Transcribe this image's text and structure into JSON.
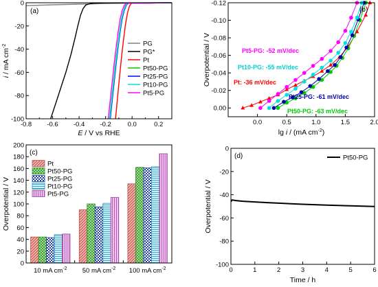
{
  "chart_data": [
    {
      "panel": "(a)",
      "type": "line",
      "xlabel_italic": "E",
      "xlabel_rest": " / V vs RHE",
      "ylabel_italic": "i",
      "ylabel_rest": " / mA cm",
      "ylabel_sup": "-2",
      "xlim": [
        -0.8,
        0.3
      ],
      "ylim": [
        -100,
        0
      ],
      "xticks": [
        -0.8,
        -0.7,
        -0.6,
        -0.5,
        -0.4,
        -0.3,
        -0.2,
        -0.1,
        0.0,
        0.1,
        0.2,
        0.3
      ],
      "xtick_labels": [
        "-0.8",
        "",
        "-0.6",
        "",
        "-0.4",
        "",
        "-0.2",
        "",
        "0.0",
        "",
        "0.2",
        ""
      ],
      "yticks": [
        -100,
        -80,
        -60,
        -40,
        -20,
        0
      ],
      "ytick_labels": [
        "-100",
        "-80",
        "-60",
        "-40",
        "-20",
        "0"
      ],
      "legend_position": "center-right",
      "series": [
        {
          "name": "PG",
          "color": "#808080",
          "x": [
            -0.8,
            -0.6,
            -0.4,
            -0.2,
            0.0,
            0.2,
            0.3
          ],
          "y": [
            -2.5,
            -1.8,
            -1.2,
            -0.7,
            -0.3,
            -0.1,
            0
          ]
        },
        {
          "name": "PG*",
          "color": "#000000",
          "x": [
            -0.615,
            -0.58,
            -0.54,
            -0.5,
            -0.46,
            -0.43,
            -0.41,
            -0.39,
            -0.37,
            -0.35,
            -0.32,
            -0.28,
            -0.2,
            0.3
          ],
          "y": [
            -100,
            -88,
            -74,
            -60,
            -44,
            -30,
            -20,
            -11,
            -5,
            -2,
            -0.8,
            -0.3,
            -0.1,
            0
          ]
        },
        {
          "name": "Pt",
          "color": "#ff0000",
          "x": [
            -0.125,
            -0.11,
            -0.095,
            -0.08,
            -0.065,
            -0.05,
            -0.035,
            -0.02,
            -0.005,
            0.3
          ],
          "y": [
            -100,
            -82,
            -64,
            -47,
            -32,
            -19,
            -9,
            -3,
            -0.4,
            0
          ]
        },
        {
          "name": "Pt50-PG",
          "color": "#00cc00",
          "x": [
            -0.17,
            -0.155,
            -0.14,
            -0.125,
            -0.11,
            -0.095,
            -0.08,
            -0.065,
            -0.05,
            -0.035,
            0.3
          ],
          "y": [
            -100,
            -84,
            -68,
            -52,
            -38,
            -25,
            -14,
            -7,
            -2.5,
            -0.5,
            0
          ]
        },
        {
          "name": "Pt25-PG",
          "color": "#0000ff",
          "x": [
            -0.165,
            -0.15,
            -0.135,
            -0.12,
            -0.105,
            -0.09,
            -0.075,
            -0.06,
            -0.045,
            -0.03,
            0.3
          ],
          "y": [
            -100,
            -84,
            -68,
            -52,
            -38,
            -25,
            -14,
            -7,
            -2.5,
            -0.5,
            0
          ]
        },
        {
          "name": "Pt10-PG",
          "color": "#00e0e0",
          "x": [
            -0.168,
            -0.153,
            -0.138,
            -0.123,
            -0.108,
            -0.093,
            -0.078,
            -0.063,
            -0.048,
            -0.033,
            0.3
          ],
          "y": [
            -100,
            -84,
            -68,
            -52,
            -38,
            -25,
            -14,
            -7,
            -2.5,
            -0.5,
            0
          ]
        },
        {
          "name": "Pt5-PG",
          "color": "#ff00ff",
          "x": [
            -0.18,
            -0.165,
            -0.15,
            -0.135,
            -0.12,
            -0.105,
            -0.09,
            -0.075,
            -0.06,
            -0.045,
            0.3
          ],
          "y": [
            -100,
            -84,
            -68,
            -52,
            -38,
            -25,
            -14,
            -7,
            -2.5,
            -0.5,
            0
          ]
        }
      ]
    },
    {
      "panel": "(b)",
      "type": "scatter",
      "xlabel_prefix": "lg ",
      "xlabel_italic": "i",
      "xlabel_rest": " / (mA cm",
      "xlabel_sup": "-2",
      "xlabel_close": ")",
      "ylabel": "Overpotential / V",
      "xlim": [
        -0.5,
        2.0
      ],
      "ylim": [
        0.01,
        -0.12
      ],
      "xticks": [
        -0.5,
        0.0,
        0.5,
        1.0,
        1.5,
        2.0
      ],
      "xtick_labels": [
        "",
        "0.0",
        "0.5",
        "1.0",
        "1.5",
        "2.0"
      ],
      "yticks": [
        0.0,
        -0.02,
        -0.04,
        -0.06,
        -0.08,
        -0.1,
        -0.12
      ],
      "ytick_labels": [
        "0.00",
        "-0.02",
        "-0.04",
        "-0.06",
        "-0.08",
        "-0.10",
        "-0.12"
      ],
      "series": [
        {
          "name": "Pt",
          "color": "#ff0000",
          "marker": "triangle",
          "x": [
            -0.25,
            -0.1,
            0.05,
            0.2,
            0.35,
            0.5,
            0.65,
            0.8,
            0.95,
            1.1,
            1.25,
            1.4,
            1.55,
            1.7,
            1.85,
            1.92
          ],
          "y": [
            0.0,
            -0.003,
            -0.007,
            -0.011,
            -0.015,
            -0.021,
            -0.026,
            -0.031,
            -0.036,
            -0.042,
            -0.049,
            -0.058,
            -0.07,
            -0.087,
            -0.106,
            -0.12
          ]
        },
        {
          "name": "Pt50-PG",
          "color": "#00cc00",
          "marker": "circle",
          "x": [
            0.35,
            0.5,
            0.65,
            0.8,
            0.95,
            1.1,
            1.25,
            1.35,
            1.45,
            1.55,
            1.65,
            1.75,
            1.85
          ],
          "y": [
            0.0,
            -0.006,
            -0.011,
            -0.017,
            -0.024,
            -0.032,
            -0.041,
            -0.048,
            -0.057,
            -0.068,
            -0.082,
            -0.1,
            -0.12
          ]
        },
        {
          "name": "Pt25-PG",
          "color": "#0000aa",
          "marker": "circle",
          "x": [
            0.28,
            0.45,
            0.6,
            0.75,
            0.9,
            1.05,
            1.2,
            1.32,
            1.42,
            1.52,
            1.62,
            1.72,
            1.82
          ],
          "y": [
            0.0,
            -0.007,
            -0.012,
            -0.018,
            -0.025,
            -0.033,
            -0.042,
            -0.049,
            -0.058,
            -0.069,
            -0.083,
            -0.101,
            -0.12
          ]
        },
        {
          "name": "Pt10-PG",
          "color": "#00e0e0",
          "marker": "circle",
          "x": [
            0.2,
            0.35,
            0.5,
            0.65,
            0.8,
            0.95,
            1.1,
            1.25,
            1.38,
            1.5,
            1.6,
            1.7,
            1.78
          ],
          "y": [
            0.0,
            -0.008,
            -0.015,
            -0.022,
            -0.03,
            -0.038,
            -0.046,
            -0.054,
            -0.063,
            -0.074,
            -0.087,
            -0.103,
            -0.12
          ]
        },
        {
          "name": "Pt5-PG",
          "color": "#ff00ff",
          "marker": "circle",
          "x": [
            0.05,
            0.2,
            0.35,
            0.5,
            0.65,
            0.8,
            0.95,
            1.1,
            1.25,
            1.38,
            1.5,
            1.6,
            1.7
          ],
          "y": [
            0.0,
            -0.008,
            -0.016,
            -0.024,
            -0.032,
            -0.04,
            -0.048,
            -0.056,
            -0.065,
            -0.075,
            -0.088,
            -0.103,
            -0.12
          ]
        }
      ],
      "annotations": [
        {
          "text": "Pt5-PG: -52 mV/dec",
          "color": "#ff00ff"
        },
        {
          "text": "Pt10-PG: -55 mV/dec",
          "color": "#00d0d0"
        },
        {
          "text": "Pt: -36 mV/dec",
          "color": "#ff0000"
        },
        {
          "text": "Pt25-PG: -61 mV/dec",
          "color": "#0000aa"
        },
        {
          "text": "Pt50-PG: -63 mV/dec",
          "color": "#00cc00"
        }
      ]
    },
    {
      "panel": "(c)",
      "type": "bar",
      "ylabel": "Overpotential / V",
      "ylim": [
        0,
        200
      ],
      "yticks": [
        0,
        20,
        40,
        60,
        80,
        100,
        120,
        140,
        160,
        180,
        200
      ],
      "ytick_labels": [
        "0",
        "20",
        "40",
        "60",
        "80",
        "100",
        "120",
        "140",
        "160",
        "180",
        "200"
      ],
      "categories": [
        {
          "value": "10 mA cm",
          "sup": "-2"
        },
        {
          "value": "50 mA cm",
          "sup": "-2"
        },
        {
          "value": "100 mA cm",
          "sup": "-2"
        }
      ],
      "legend_position": "top-left",
      "series": [
        {
          "name": "Pt",
          "color": "#c0504d",
          "fill": "#f4b6ae",
          "pattern": "diag",
          "values": [
            44,
            90,
            134
          ]
        },
        {
          "name": "Pt50-PG",
          "color": "#2e8b2e",
          "fill": "#b9f0a0",
          "pattern": "cross",
          "values": [
            44,
            100,
            162
          ]
        },
        {
          "name": "Pt25-PG",
          "color": "#1f3fa8",
          "fill": "#6c8df5",
          "pattern": "check",
          "values": [
            43,
            95,
            161
          ]
        },
        {
          "name": "Pt10-PG",
          "color": "#2a8fb0",
          "fill": "#c9f1fb",
          "pattern": "horiz",
          "values": [
            48,
            101,
            163
          ]
        },
        {
          "name": "Pt5-PG",
          "color": "#a040a0",
          "fill": "#f1c3f1",
          "pattern": "vert",
          "values": [
            49,
            111,
            185
          ]
        }
      ]
    },
    {
      "panel": "(d)",
      "type": "line",
      "xlabel": "Time / h",
      "ylabel": "Overpotential / V",
      "xlim": [
        0,
        6
      ],
      "ylim": [
        -100,
        0
      ],
      "xticks": [
        0,
        1,
        2,
        3,
        4,
        5,
        6
      ],
      "xtick_labels": [
        "0",
        "1",
        "2",
        "3",
        "4",
        "5",
        "6"
      ],
      "yticks": [
        -100,
        -80,
        -60,
        -40,
        -20,
        0
      ],
      "ytick_labels": [
        "-100",
        "-80",
        "-60",
        "-40",
        "-20",
        "0"
      ],
      "legend_position": "top-right",
      "series": [
        {
          "name": "Pt50-PG",
          "color": "#000000",
          "x": [
            0,
            0.05,
            0.2,
            0.5,
            1,
            1.5,
            2,
            2.5,
            3,
            3.5,
            4,
            4.5,
            5,
            5.5,
            6
          ],
          "y": [
            -46,
            -44.5,
            -45,
            -45.6,
            -46.2,
            -46.8,
            -47.3,
            -47.8,
            -48.2,
            -48.6,
            -49.0,
            -49.3,
            -49.6,
            -49.9,
            -50.2
          ]
        }
      ]
    }
  ]
}
